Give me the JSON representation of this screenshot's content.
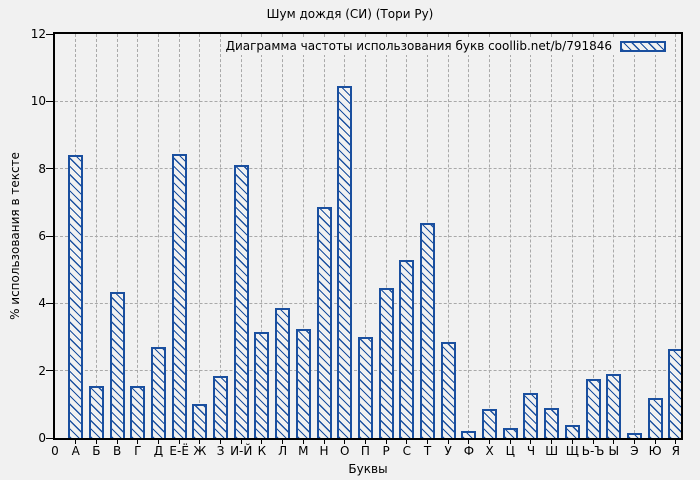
{
  "chart_data": {
    "type": "bar",
    "title": "Шум дождя (СИ) (Тори Ру)",
    "legend_label": "Диаграмма частоты использования букв coollib.net/b/791846",
    "legend_position": "top-right-inside",
    "xlabel": "Буквы",
    "ylabel": "% использования в тексте",
    "origin_tick_label": "0",
    "ylim": [
      0,
      12
    ],
    "yticks": [
      0,
      2,
      4,
      6,
      8,
      10,
      12
    ],
    "grid": true,
    "bar_color": "#1a4f9f",
    "background_color": "#f1f1f1",
    "categories": [
      "А",
      "Б",
      "В",
      "Г",
      "Д",
      "Е-Ё",
      "Ж",
      "З",
      "И-Й",
      "К",
      "Л",
      "М",
      "Н",
      "О",
      "П",
      "Р",
      "С",
      "Т",
      "У",
      "Ф",
      "Х",
      "Ц",
      "Ч",
      "Ш",
      "Щ",
      "Ь-Ъ",
      "Ы",
      "Э",
      "Ю",
      "Я"
    ],
    "values": [
      8.4,
      1.55,
      4.35,
      1.55,
      2.7,
      8.45,
      1.0,
      1.85,
      8.1,
      3.15,
      3.85,
      3.25,
      6.85,
      10.45,
      3.0,
      4.45,
      5.3,
      6.4,
      2.85,
      0.2,
      0.85,
      0.3,
      1.35,
      0.9,
      0.4,
      1.75,
      1.9,
      0.15,
      1.2,
      2.65
    ]
  }
}
